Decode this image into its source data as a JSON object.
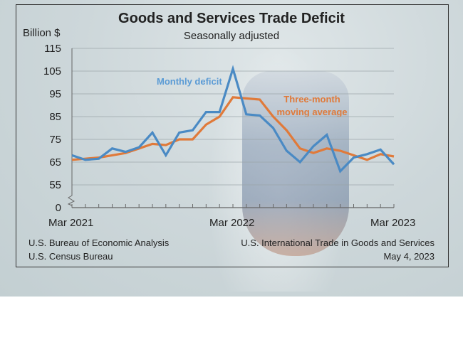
{
  "chart_data": {
    "type": "line",
    "title": "Goods and Services Trade Deficit",
    "subtitle": "Seasonally adjusted",
    "ylabel": "Billion $",
    "ylim": [
      0,
      115
    ],
    "y_axis_break": "between 0 and 55",
    "yticks": [
      "115",
      "105",
      "95",
      "85",
      "75",
      "65",
      "55",
      "0"
    ],
    "ytick_values": [
      115,
      105,
      95,
      85,
      75,
      65,
      55
    ],
    "xticks": [
      "Mar 2021",
      "Mar 2022",
      "Mar 2023"
    ],
    "x": [
      "Mar 2021",
      "Apr 2021",
      "May 2021",
      "Jun 2021",
      "Jul 2021",
      "Aug 2021",
      "Sep 2021",
      "Oct 2021",
      "Nov 2021",
      "Dec 2021",
      "Jan 2022",
      "Feb 2022",
      "Mar 2022",
      "Apr 2022",
      "May 2022",
      "Jun 2022",
      "Jul 2022",
      "Aug 2022",
      "Sep 2022",
      "Oct 2022",
      "Nov 2022",
      "Dec 2022",
      "Jan 2023",
      "Feb 2023",
      "Mar 2023"
    ],
    "grid": true,
    "series": [
      {
        "name": "Monthly deficit",
        "color": "#4a8ac4",
        "values": [
          68,
          66,
          66.5,
          71,
          69.5,
          71.5,
          78,
          68,
          78,
          79,
          87,
          87,
          106,
          86,
          85.5,
          80,
          70,
          65,
          72,
          77,
          61,
          67,
          68.5,
          70.5,
          64
        ]
      },
      {
        "name": "Three-month moving average",
        "color": "#e07a3a",
        "values": [
          66,
          66.5,
          67,
          68,
          69,
          71,
          73,
          72.5,
          75,
          75,
          81.5,
          85,
          93.5,
          93,
          92.5,
          85,
          79,
          71,
          69,
          71,
          70,
          68,
          66,
          68.5,
          67.5
        ]
      }
    ],
    "annotations": [
      "Monthly deficit",
      "Three-month",
      "moving average"
    ]
  },
  "footer": {
    "left1": "U.S. Bureau of Economic Analysis",
    "left2": "U.S. Census Bureau",
    "right1": "U.S. International Trade in Goods and Services",
    "right2": "May 4, 2023"
  }
}
